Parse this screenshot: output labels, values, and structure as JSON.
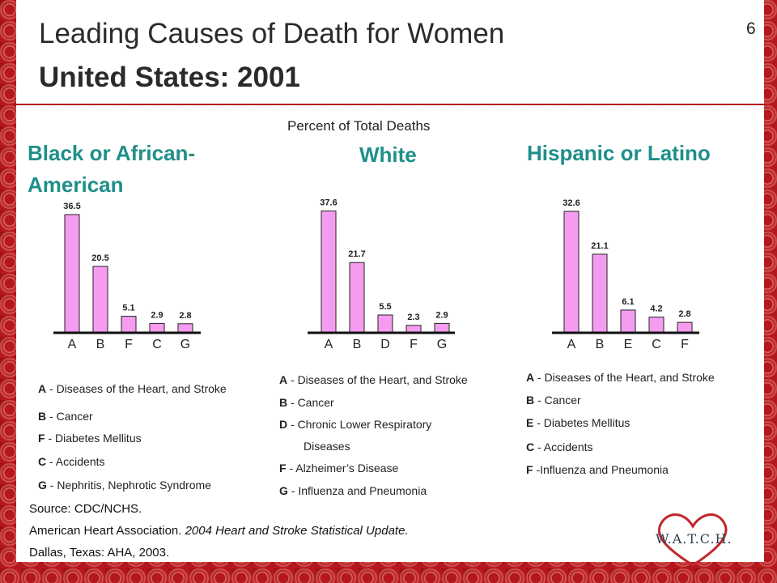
{
  "slide": {
    "page_number": "6",
    "title_line1": "Leading Causes of Death for Women",
    "title_line2": "United States: 2001",
    "subtitle": "Percent of Total Deaths"
  },
  "colors": {
    "bar_fill": "#f59cf0",
    "bar_stroke": "#222222",
    "heading": "#1f8f8a",
    "background": "#b5181c"
  },
  "chart_data": [
    {
      "type": "bar",
      "title": "Black or African-American",
      "categories": [
        "A",
        "B",
        "F",
        "C",
        "G"
      ],
      "values": [
        36.5,
        20.5,
        5.1,
        2.9,
        2.8
      ],
      "value_labels": [
        "36.5",
        "20.5",
        "5.1",
        "2.9",
        "2.8"
      ],
      "legend": [
        {
          "code": "A",
          "sep": " - ",
          "text": "Diseases of the Heart, and Stroke"
        },
        {
          "code": "B",
          "sep": " - ",
          "text": "Cancer"
        },
        {
          "code": "F",
          "sep": " - ",
          "text": "Diabetes Mellitus"
        },
        {
          "code": "C",
          "sep": " - ",
          "text": "Accidents"
        },
        {
          "code": "G",
          "sep": " - ",
          "text": "Nephritis, Nephrotic Syndrome"
        }
      ]
    },
    {
      "type": "bar",
      "title": "White",
      "categories": [
        "A",
        "B",
        "D",
        "F",
        "G"
      ],
      "values": [
        37.6,
        21.7,
        5.5,
        2.3,
        2.9
      ],
      "value_labels": [
        "37.6",
        "21.7",
        "5.5",
        "2.3",
        "2.9"
      ],
      "legend": [
        {
          "code": "A",
          "sep": " - ",
          "text": "Diseases of the Heart, and Stroke"
        },
        {
          "code": "B",
          "sep": " - ",
          "text": "Cancer"
        },
        {
          "code": "D",
          "sep": " - ",
          "text": "Chronic Lower Respiratory"
        },
        {
          "code": "",
          "sep": "",
          "text": "Diseases"
        },
        {
          "code": "F",
          "sep": " - ",
          "text": "Alzheimer’s Disease"
        },
        {
          "code": "G",
          "sep": " - ",
          "text": "Influenza and Pneumonia"
        }
      ]
    },
    {
      "type": "bar",
      "title": "Hispanic or Latino",
      "categories": [
        "A",
        "B",
        "E",
        "C",
        "F"
      ],
      "values": [
        32.6,
        21.1,
        6.1,
        4.2,
        2.8
      ],
      "value_labels": [
        "32.6",
        "21.1",
        "6.1",
        "4.2",
        "2.8"
      ],
      "legend": [
        {
          "code": "A",
          "sep": " - ",
          "text": "Diseases of the Heart, and Stroke"
        },
        {
          "code": "B",
          "sep": " - ",
          "text": "Cancer"
        },
        {
          "code": "E",
          "sep": " - ",
          "text": "Diabetes Mellitus"
        },
        {
          "code": "C",
          "sep": " - ",
          "text": "Accidents"
        },
        {
          "code": "F",
          "sep": " -",
          "text": "Influenza and Pneumonia"
        }
      ]
    }
  ],
  "source": {
    "line1": "Source: CDC/NCHS.",
    "line2_prefix": "American Heart Association. ",
    "line2_italic": "2004 Heart and Stroke Statistical Update.",
    "line3": "Dallas, Texas: AHA, 2003."
  },
  "logo": {
    "text": "W.A.T.C.H.",
    "icon": "heart-icon"
  }
}
